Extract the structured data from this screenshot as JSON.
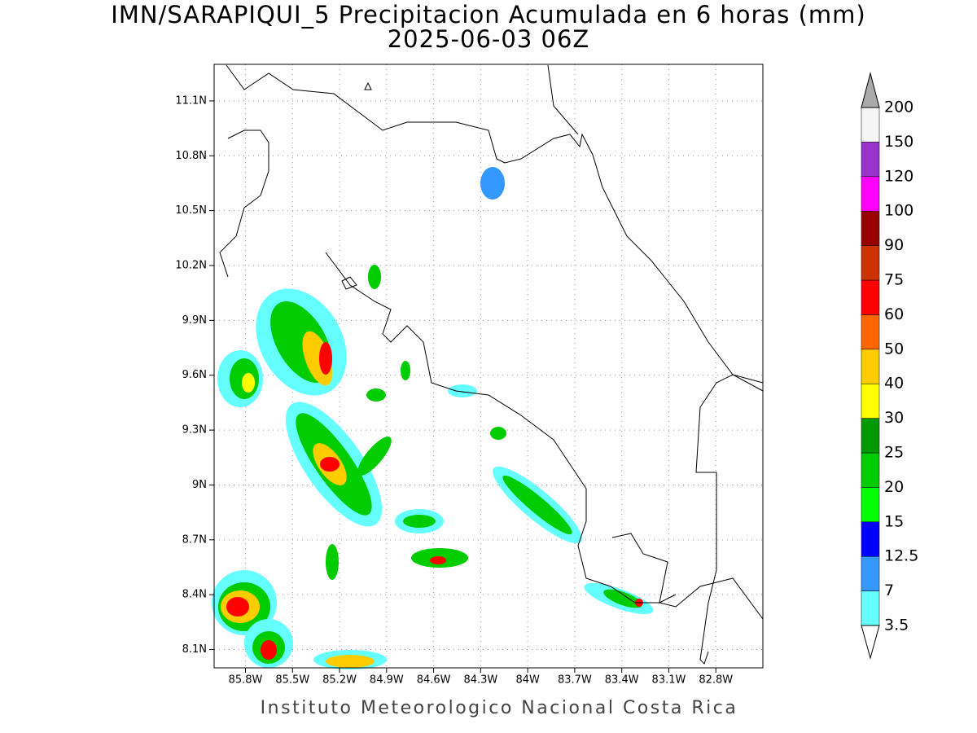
{
  "chart_data": {
    "type": "map",
    "title": "IMN/SARAPIQUI_5 Precipitacion Acumulada en 6 horas (mm)",
    "subtitle": "2025-06-03 06Z",
    "footer": "Instituto Meteorologico Nacional Costa Rica",
    "xlim": [
      -86.0,
      -82.5
    ],
    "ylim": [
      8.0,
      11.3
    ],
    "grid": true,
    "xticks": [
      {
        "value": -85.8,
        "label": "85.8W"
      },
      {
        "value": -85.5,
        "label": "85.5W"
      },
      {
        "value": -85.2,
        "label": "85.2W"
      },
      {
        "value": -84.9,
        "label": "84.9W"
      },
      {
        "value": -84.6,
        "label": "84.6W"
      },
      {
        "value": -84.3,
        "label": "84.3W"
      },
      {
        "value": -84.0,
        "label": "84W"
      },
      {
        "value": -83.7,
        "label": "83.7W"
      },
      {
        "value": -83.4,
        "label": "83.4W"
      },
      {
        "value": -83.1,
        "label": "83.1W"
      },
      {
        "value": -82.8,
        "label": "82.8W"
      }
    ],
    "yticks": [
      {
        "value": 8.1,
        "label": "8.1N"
      },
      {
        "value": 8.4,
        "label": "8.4N"
      },
      {
        "value": 8.7,
        "label": "8.7N"
      },
      {
        "value": 9.0,
        "label": "9N"
      },
      {
        "value": 9.3,
        "label": "9.3N"
      },
      {
        "value": 9.6,
        "label": "9.6N"
      },
      {
        "value": 9.9,
        "label": "9.9N"
      },
      {
        "value": 10.2,
        "label": "10.2N"
      },
      {
        "value": 10.5,
        "label": "10.5N"
      },
      {
        "value": 10.8,
        "label": "10.8N"
      },
      {
        "value": 11.1,
        "label": "11.1N"
      }
    ],
    "colorbar": {
      "levels": [
        3.5,
        7,
        12.5,
        15,
        20,
        25,
        30,
        40,
        50,
        60,
        75,
        90,
        100,
        120,
        150,
        200
      ],
      "colors": [
        "#66ffff",
        "#3399ff",
        "#0000ff",
        "#00ff00",
        "#00cc00",
        "#009900",
        "#ffff00",
        "#ffcc00",
        "#ff6600",
        "#ff0000",
        "#cc3300",
        "#990000",
        "#ff00ff",
        "#9933cc",
        "#f5f5f5"
      ],
      "under_color": "#ffffff",
      "over_color": "#aaaaaa"
    }
  }
}
